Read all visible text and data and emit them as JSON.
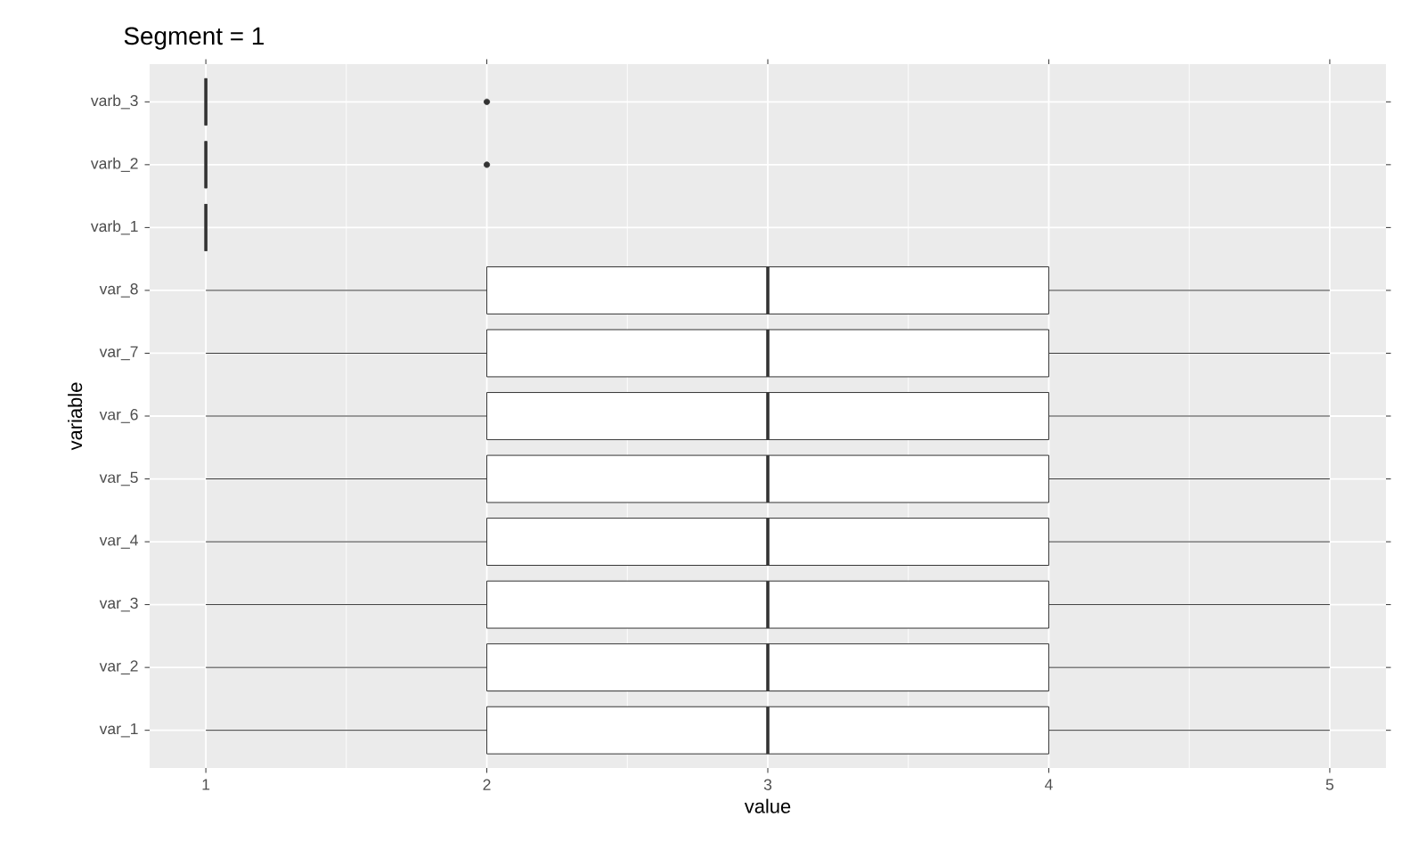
{
  "chart_data": {
    "type": "box",
    "orientation": "horizontal",
    "title": "Segment = 1",
    "xlabel": "value",
    "ylabel": "variable",
    "categories": [
      "varb_3",
      "varb_2",
      "varb_1",
      "var_8",
      "var_7",
      "var_6",
      "var_5",
      "var_4",
      "var_3",
      "var_2",
      "var_1"
    ],
    "boxes": [
      {
        "low": 1,
        "q1": 1,
        "median": 1,
        "q3": 1,
        "high": 1,
        "outliers": [
          2
        ]
      },
      {
        "low": 1,
        "q1": 1,
        "median": 1,
        "q3": 1,
        "high": 1,
        "outliers": [
          2
        ]
      },
      {
        "low": 1,
        "q1": 1,
        "median": 1,
        "q3": 1,
        "high": 1
      },
      {
        "low": 1,
        "q1": 2,
        "median": 3,
        "q3": 4,
        "high": 5
      },
      {
        "low": 1,
        "q1": 2,
        "median": 3,
        "q3": 4,
        "high": 5
      },
      {
        "low": 1,
        "q1": 2,
        "median": 3,
        "q3": 4,
        "high": 5
      },
      {
        "low": 1,
        "q1": 2,
        "median": 3,
        "q3": 4,
        "high": 5
      },
      {
        "low": 1,
        "q1": 2,
        "median": 3,
        "q3": 4,
        "high": 5
      },
      {
        "low": 1,
        "q1": 2,
        "median": 3,
        "q3": 4,
        "high": 5
      },
      {
        "low": 1,
        "q1": 2,
        "median": 3,
        "q3": 4,
        "high": 5
      },
      {
        "low": 1,
        "q1": 2,
        "median": 3,
        "q3": 4,
        "high": 5
      }
    ],
    "xlim": [
      0.8,
      5.2
    ],
    "xticks": [
      1,
      2,
      3,
      4,
      5
    ],
    "grid": true,
    "color": "#333333"
  }
}
